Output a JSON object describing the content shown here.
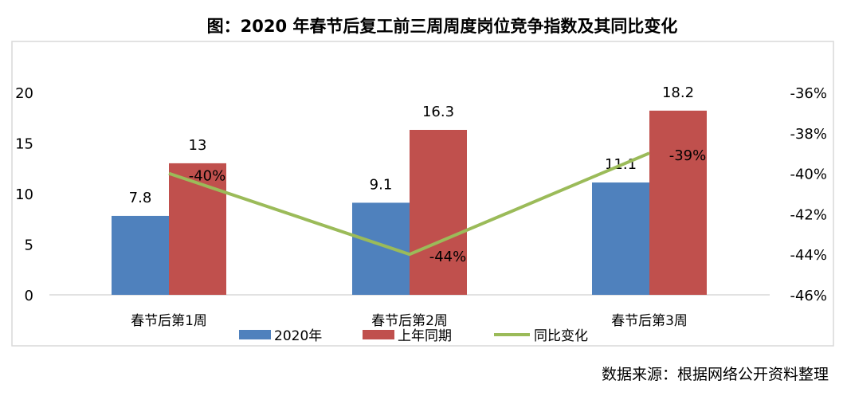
{
  "chart_data": {
    "type": "bar",
    "title": "图：2020 年春节后复工前三周周度岗位竞争指数及其同比变化",
    "categories": [
      "春节后第1周",
      "春节后第2周",
      "春节后第3周"
    ],
    "series": [
      {
        "name": "2020年",
        "type": "bar",
        "axis": "left",
        "color": "#4f81bd",
        "values": [
          7.8,
          9.1,
          11.1
        ],
        "labels": [
          "7.8",
          "9.1",
          "11.1"
        ]
      },
      {
        "name": "上年同期",
        "type": "bar",
        "axis": "left",
        "color": "#c0504d",
        "values": [
          13,
          16.3,
          18.2
        ],
        "labels": [
          "13",
          "16.3",
          "18.2"
        ]
      },
      {
        "name": "同比变化",
        "type": "line",
        "axis": "right",
        "color": "#9bbb59",
        "values": [
          -40,
          -44,
          -39
        ],
        "labels": [
          "-40%",
          "-44%",
          "-39%"
        ]
      }
    ],
    "left_axis": {
      "ylim": [
        0,
        20
      ],
      "ticks": [
        "0",
        "5",
        "10",
        "15",
        "20"
      ]
    },
    "right_axis": {
      "ylim": [
        -46,
        -36
      ],
      "ticks": [
        "-46%",
        "-44%",
        "-42%",
        "-40%",
        "-38%",
        "-36%"
      ]
    },
    "grid": false,
    "legend": "bottom"
  },
  "source": "数据来源：根据网络公开资料整理"
}
